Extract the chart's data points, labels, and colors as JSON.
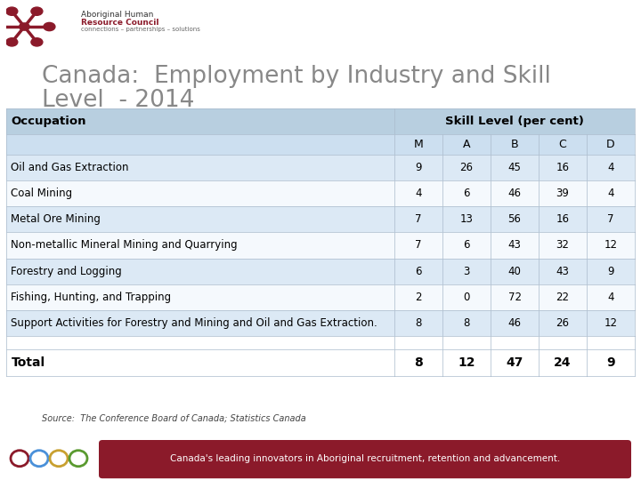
{
  "title_line1": "Canada:  Employment by Industry and Skill",
  "title_line2": "Level  - 2014",
  "title_color": "#888888",
  "header1": "Occupation",
  "header2": "Skill Level (per cent)",
  "subheaders": [
    "M",
    "A",
    "B",
    "C",
    "D"
  ],
  "rows": [
    {
      "occupation": "Oil and Gas Extraction",
      "values": [
        9,
        26,
        45,
        16,
        4
      ]
    },
    {
      "occupation": "Coal Mining",
      "values": [
        4,
        6,
        46,
        39,
        4
      ]
    },
    {
      "occupation": "Metal Ore Mining",
      "values": [
        7,
        13,
        56,
        16,
        7
      ]
    },
    {
      "occupation": "Non-metallic Mineral Mining and Quarrying",
      "values": [
        7,
        6,
        43,
        32,
        12
      ]
    },
    {
      "occupation": "Forestry and Logging",
      "values": [
        6,
        3,
        40,
        43,
        9
      ]
    },
    {
      "occupation": "Fishing, Hunting, and Trapping",
      "values": [
        2,
        0,
        72,
        22,
        4
      ]
    },
    {
      "occupation": "Support Activities for Forestry and Mining and Oil and Gas Extraction.",
      "values": [
        8,
        8,
        46,
        26,
        12
      ]
    }
  ],
  "total_row": {
    "occupation": "Total",
    "values": [
      8,
      12,
      47,
      24,
      9
    ]
  },
  "source_text": "Source:  The Conference Board of Canada; Statistics Canada",
  "footer_text": "Canada's leading innovators in Aboriginal recruitment, retention and advancement.",
  "header_bg": "#b8cfe0",
  "subheader_bg": "#ccdff0",
  "row_bg_light": "#dce9f5",
  "row_bg_white": "#f5f9fd",
  "total_bg": "#ffffff",
  "border_color": "#aabbcc",
  "text_color": "#000000",
  "footer_bg": "#8b1a2a",
  "footer_text_color": "#ffffff",
  "circle_colors": [
    "#8b1a2a",
    "#4a90d9",
    "#c8a830",
    "#5a9a30"
  ],
  "star_color": "#8b1a2a",
  "logo_text1": "Aboriginal Human",
  "logo_text2": "Resource Council",
  "logo_text3": "connections – partnerships – solutions",
  "title_fontsize": 19,
  "table_fontsize": 8.5
}
